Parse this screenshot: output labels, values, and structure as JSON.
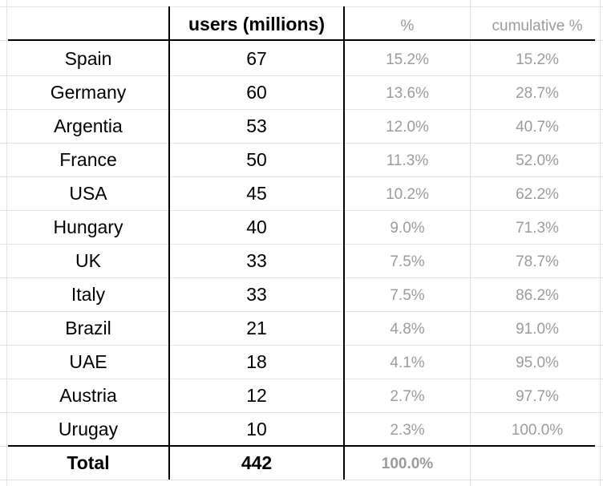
{
  "columns": {
    "country": "",
    "users": "users (millions)",
    "pct": "%",
    "cumulative": "cumulative %"
  },
  "rows": [
    {
      "country": "Spain",
      "users": "67",
      "pct": "15.2%",
      "cumulative": "15.2%"
    },
    {
      "country": "Germany",
      "users": "60",
      "pct": "13.6%",
      "cumulative": "28.7%"
    },
    {
      "country": "Argentia",
      "users": "53",
      "pct": "12.0%",
      "cumulative": "40.7%"
    },
    {
      "country": "France",
      "users": "50",
      "pct": "11.3%",
      "cumulative": "52.0%"
    },
    {
      "country": "USA",
      "users": "45",
      "pct": "10.2%",
      "cumulative": "62.2%"
    },
    {
      "country": "Hungary",
      "users": "40",
      "pct": "9.0%",
      "cumulative": "71.3%"
    },
    {
      "country": "UK",
      "users": "33",
      "pct": "7.5%",
      "cumulative": "78.7%"
    },
    {
      "country": "Italy",
      "users": "33",
      "pct": "7.5%",
      "cumulative": "86.2%"
    },
    {
      "country": "Brazil",
      "users": "21",
      "pct": "4.8%",
      "cumulative": "91.0%"
    },
    {
      "country": "UAE",
      "users": "18",
      "pct": "4.1%",
      "cumulative": "95.0%"
    },
    {
      "country": "Austria",
      "users": "12",
      "pct": "2.7%",
      "cumulative": "97.7%"
    },
    {
      "country": "Urugay",
      "users": "10",
      "pct": "2.3%",
      "cumulative": "100.0%"
    }
  ],
  "total": {
    "label": "Total",
    "users": "442",
    "pct": "100.0%"
  }
}
